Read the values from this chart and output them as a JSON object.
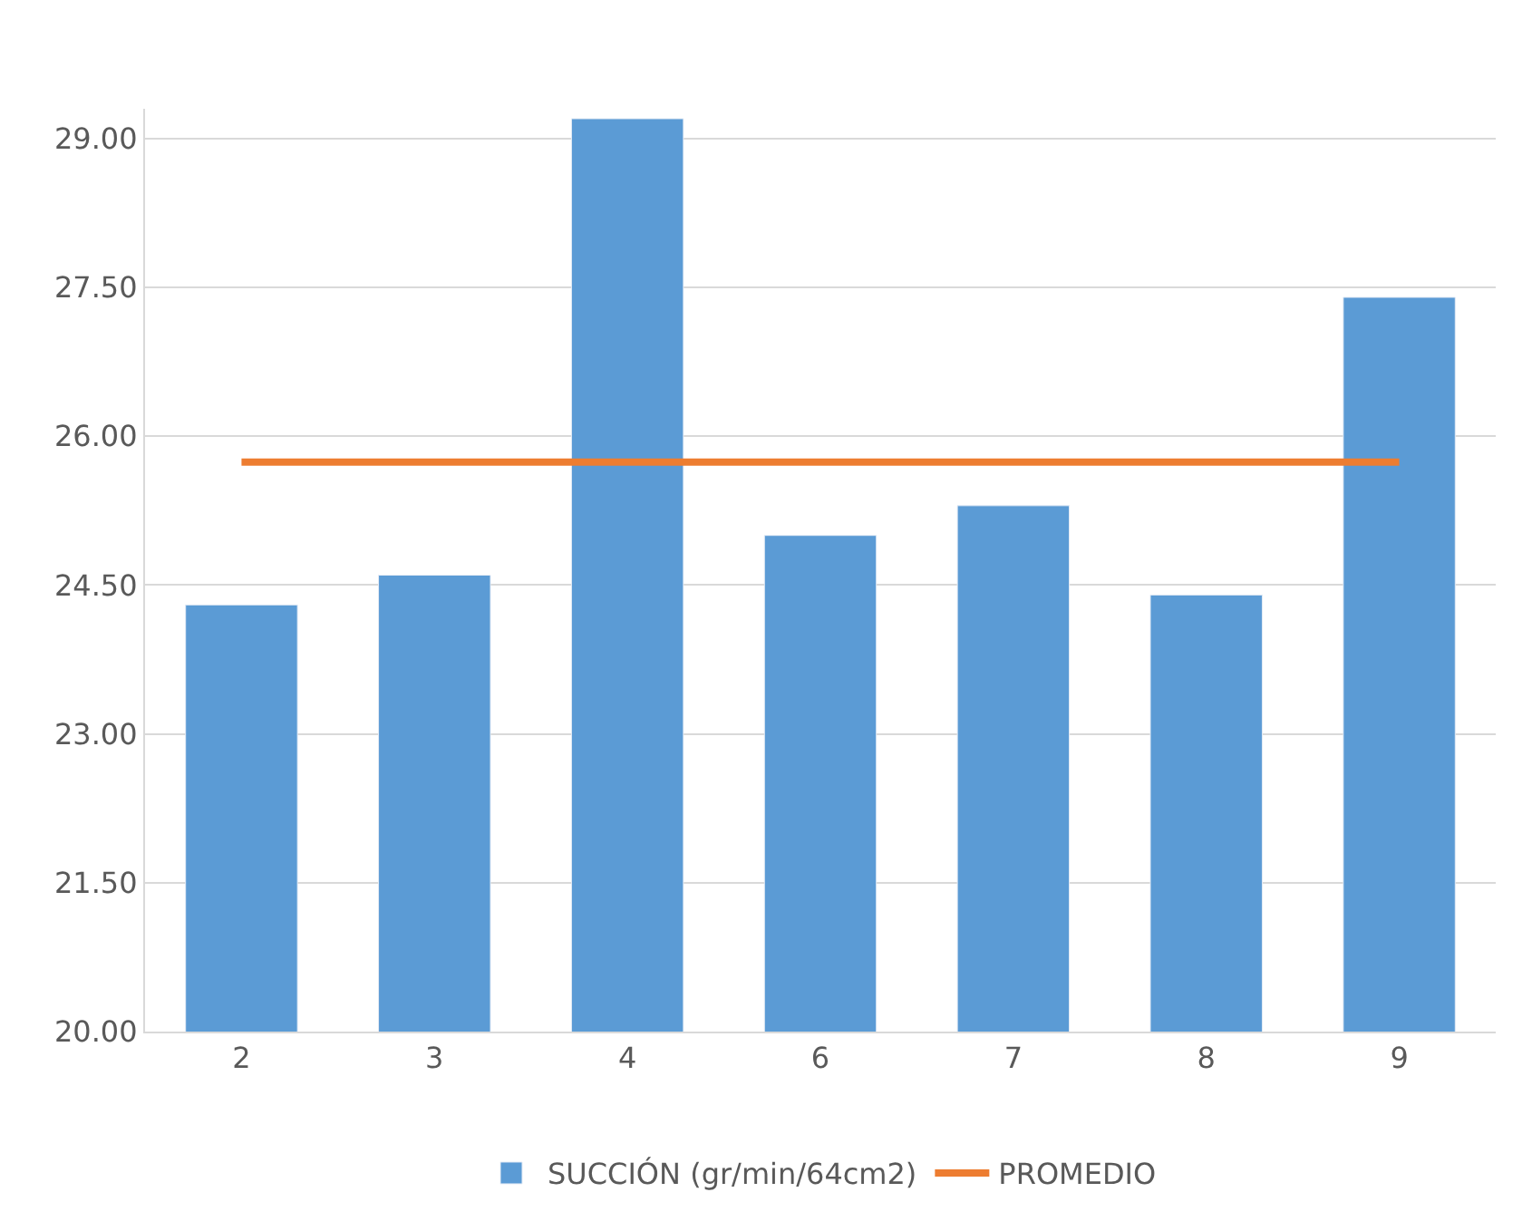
{
  "chart_data": {
    "type": "bar",
    "categories": [
      "2",
      "3",
      "4",
      "6",
      "7",
      "8",
      "9"
    ],
    "series": [
      {
        "name": "SUCCIÓN (gr/min/64cm2)",
        "color": "#5b9bd5",
        "values": [
          24.3,
          24.6,
          29.2,
          25.0,
          25.3,
          24.4,
          27.4
        ]
      },
      {
        "name": "PROMEDIO",
        "type": "line",
        "color": "#ed7d31",
        "values": [
          25.74,
          25.74,
          25.74,
          25.74,
          25.74,
          25.74,
          25.74
        ]
      }
    ],
    "ylim": [
      20,
      29.3
    ],
    "yticks": [
      {
        "value": 20,
        "label": "20.00"
      },
      {
        "value": 21.5,
        "label": "21.50"
      },
      {
        "value": 23,
        "label": "23.00"
      },
      {
        "value": 24.5,
        "label": "24.50"
      },
      {
        "value": 26,
        "label": "26.00"
      },
      {
        "value": 27.5,
        "label": "27.50"
      },
      {
        "value": 29,
        "label": "29.00"
      }
    ],
    "grid": "y",
    "legend": "bottom",
    "marker": "none",
    "line_style": "solid"
  }
}
